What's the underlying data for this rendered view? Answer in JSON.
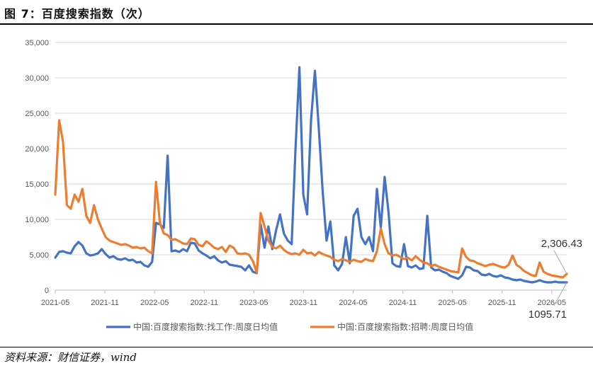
{
  "figure": {
    "title": "图 7：百度搜索指数（次）",
    "source": "资料来源：财信证券，wind"
  },
  "chart_data": {
    "type": "line",
    "y_ticks": [
      "35,000",
      "30,000",
      "25,000",
      "20,000",
      "15,000",
      "10,000",
      "5,000",
      "0"
    ],
    "x_ticks": [
      "2021-05",
      "2021-11",
      "2022-05",
      "2022-11",
      "2023-05",
      "2023-11",
      "2024-05",
      "2024-11",
      "2025-05",
      "2025-11",
      "2026-05"
    ],
    "ylim": [
      0,
      35000
    ],
    "grid": true,
    "legend_position": "bottom",
    "annotations": [
      {
        "text": "2,306.43",
        "series": "orange"
      },
      {
        "text": "1095.71",
        "series": "blue"
      }
    ],
    "series": [
      {
        "name": "中国:百度搜索指数:找工作:周度日均值",
        "color": "#4472C4",
        "points": [
          [
            0,
            4600
          ],
          [
            1,
            5400
          ],
          [
            2,
            5500
          ],
          [
            3,
            5300
          ],
          [
            4,
            5200
          ],
          [
            5,
            6200
          ],
          [
            6,
            6800
          ],
          [
            7,
            6300
          ],
          [
            8,
            5200
          ],
          [
            9,
            4900
          ],
          [
            10,
            5000
          ],
          [
            11,
            5200
          ],
          [
            12,
            5800
          ],
          [
            13,
            5100
          ],
          [
            14,
            4600
          ],
          [
            15,
            4800
          ],
          [
            16,
            4400
          ],
          [
            17,
            4300
          ],
          [
            18,
            4500
          ],
          [
            19,
            4200
          ],
          [
            20,
            4300
          ],
          [
            21,
            3900
          ],
          [
            22,
            4000
          ],
          [
            23,
            3500
          ],
          [
            24,
            3300
          ],
          [
            25,
            4000
          ],
          [
            26,
            9500
          ],
          [
            27,
            9300
          ],
          [
            28,
            8800
          ],
          [
            29,
            19000
          ],
          [
            30,
            5500
          ],
          [
            31,
            5600
          ],
          [
            32,
            5400
          ],
          [
            33,
            5800
          ],
          [
            34,
            5500
          ],
          [
            35,
            6700
          ],
          [
            36,
            6600
          ],
          [
            37,
            5600
          ],
          [
            38,
            5200
          ],
          [
            39,
            4900
          ],
          [
            40,
            4500
          ],
          [
            41,
            4800
          ],
          [
            42,
            4200
          ],
          [
            43,
            3900
          ],
          [
            44,
            4100
          ],
          [
            45,
            3600
          ],
          [
            46,
            3500
          ],
          [
            47,
            3400
          ],
          [
            48,
            3300
          ],
          [
            49,
            2800
          ],
          [
            50,
            3500
          ],
          [
            51,
            2600
          ],
          [
            52,
            2400
          ],
          [
            53,
            9300
          ],
          [
            54,
            6000
          ],
          [
            55,
            9000
          ],
          [
            56,
            5800
          ],
          [
            57,
            8500
          ],
          [
            58,
            10700
          ],
          [
            59,
            8000
          ],
          [
            60,
            7000
          ],
          [
            61,
            6500
          ],
          [
            62,
            20000
          ],
          [
            63,
            31500
          ],
          [
            64,
            13500
          ],
          [
            65,
            10700
          ],
          [
            66,
            24000
          ],
          [
            67,
            31000
          ],
          [
            68,
            23000
          ],
          [
            69,
            14000
          ],
          [
            70,
            7000
          ],
          [
            71,
            9700
          ],
          [
            72,
            3500
          ],
          [
            73,
            2800
          ],
          [
            74,
            3700
          ],
          [
            75,
            7500
          ],
          [
            76,
            3800
          ],
          [
            77,
            10500
          ],
          [
            78,
            11500
          ],
          [
            79,
            7500
          ],
          [
            80,
            6500
          ],
          [
            81,
            7500
          ],
          [
            82,
            5500
          ],
          [
            83,
            14300
          ],
          [
            84,
            8800
          ],
          [
            85,
            16000
          ],
          [
            86,
            11000
          ],
          [
            87,
            3800
          ],
          [
            88,
            3400
          ],
          [
            89,
            3300
          ],
          [
            90,
            6500
          ],
          [
            91,
            3400
          ],
          [
            92,
            3200
          ],
          [
            93,
            3500
          ],
          [
            94,
            3000
          ],
          [
            95,
            3100
          ],
          [
            96,
            10500
          ],
          [
            97,
            3200
          ],
          [
            98,
            2800
          ],
          [
            99,
            2900
          ],
          [
            100,
            2600
          ],
          [
            101,
            2400
          ],
          [
            102,
            2000
          ],
          [
            103,
            1800
          ],
          [
            104,
            1600
          ],
          [
            105,
            2100
          ],
          [
            106,
            3300
          ],
          [
            107,
            3200
          ],
          [
            108,
            2800
          ],
          [
            109,
            2700
          ],
          [
            110,
            2200
          ],
          [
            111,
            2100
          ],
          [
            112,
            2300
          ],
          [
            113,
            2000
          ],
          [
            114,
            1900
          ],
          [
            115,
            2100
          ],
          [
            116,
            1800
          ],
          [
            117,
            1700
          ],
          [
            118,
            1500
          ],
          [
            119,
            1400
          ],
          [
            120,
            1500
          ],
          [
            121,
            1300
          ],
          [
            122,
            1200
          ],
          [
            123,
            1100
          ],
          [
            124,
            1200
          ],
          [
            125,
            1400
          ],
          [
            126,
            1200
          ],
          [
            127,
            1100
          ],
          [
            128,
            1100
          ],
          [
            129,
            1200
          ],
          [
            130,
            1100
          ],
          [
            131,
            1100
          ],
          [
            132,
            1095.71
          ]
        ]
      },
      {
        "name": "中国:百度搜索指数:招聘:周度日均值",
        "color": "#ED7D31",
        "points": [
          [
            0,
            13500
          ],
          [
            1,
            24000
          ],
          [
            2,
            21000
          ],
          [
            3,
            12000
          ],
          [
            4,
            11500
          ],
          [
            5,
            13500
          ],
          [
            6,
            12500
          ],
          [
            7,
            14300
          ],
          [
            8,
            10500
          ],
          [
            9,
            9500
          ],
          [
            10,
            12000
          ],
          [
            11,
            10000
          ],
          [
            12,
            8700
          ],
          [
            13,
            7500
          ],
          [
            14,
            7000
          ],
          [
            15,
            6800
          ],
          [
            16,
            6600
          ],
          [
            17,
            6400
          ],
          [
            18,
            6500
          ],
          [
            19,
            6300
          ],
          [
            20,
            6000
          ],
          [
            21,
            6100
          ],
          [
            22,
            5900
          ],
          [
            23,
            6000
          ],
          [
            24,
            5500
          ],
          [
            25,
            5200
          ],
          [
            26,
            15300
          ],
          [
            27,
            9500
          ],
          [
            28,
            8000
          ],
          [
            29,
            7800
          ],
          [
            30,
            7100
          ],
          [
            31,
            7200
          ],
          [
            32,
            6900
          ],
          [
            33,
            6600
          ],
          [
            34,
            6500
          ],
          [
            35,
            7300
          ],
          [
            36,
            7200
          ],
          [
            37,
            6400
          ],
          [
            38,
            6200
          ],
          [
            39,
            6900
          ],
          [
            40,
            6500
          ],
          [
            41,
            6000
          ],
          [
            42,
            5800
          ],
          [
            43,
            6100
          ],
          [
            44,
            5400
          ],
          [
            45,
            6300
          ],
          [
            46,
            6000
          ],
          [
            47,
            5200
          ],
          [
            48,
            5100
          ],
          [
            49,
            5200
          ],
          [
            50,
            5000
          ],
          [
            51,
            4100
          ],
          [
            52,
            2500
          ],
          [
            53,
            10900
          ],
          [
            54,
            9000
          ],
          [
            55,
            7000
          ],
          [
            56,
            6100
          ],
          [
            57,
            5900
          ],
          [
            58,
            6300
          ],
          [
            59,
            5700
          ],
          [
            60,
            5300
          ],
          [
            61,
            5100
          ],
          [
            62,
            5200
          ],
          [
            63,
            5000
          ],
          [
            64,
            5700
          ],
          [
            65,
            5200
          ],
          [
            66,
            5300
          ],
          [
            67,
            4900
          ],
          [
            68,
            5400
          ],
          [
            69,
            5100
          ],
          [
            70,
            4900
          ],
          [
            71,
            4700
          ],
          [
            72,
            4300
          ],
          [
            73,
            4100
          ],
          [
            74,
            4400
          ],
          [
            75,
            4200
          ],
          [
            76,
            4000
          ],
          [
            77,
            4300
          ],
          [
            78,
            4100
          ],
          [
            79,
            4000
          ],
          [
            80,
            4400
          ],
          [
            81,
            4200
          ],
          [
            82,
            4100
          ],
          [
            83,
            5500
          ],
          [
            84,
            8700
          ],
          [
            85,
            6500
          ],
          [
            86,
            5200
          ],
          [
            87,
            4900
          ],
          [
            88,
            5000
          ],
          [
            89,
            4700
          ],
          [
            90,
            4400
          ],
          [
            91,
            4600
          ],
          [
            92,
            4200
          ],
          [
            93,
            4800
          ],
          [
            94,
            4300
          ],
          [
            95,
            3900
          ],
          [
            96,
            3800
          ],
          [
            97,
            3400
          ],
          [
            98,
            3600
          ],
          [
            99,
            3300
          ],
          [
            100,
            3100
          ],
          [
            101,
            2900
          ],
          [
            102,
            2700
          ],
          [
            103,
            2600
          ],
          [
            104,
            2500
          ],
          [
            105,
            5900
          ],
          [
            106,
            4700
          ],
          [
            107,
            4200
          ],
          [
            108,
            4100
          ],
          [
            109,
            3800
          ],
          [
            110,
            3600
          ],
          [
            111,
            3400
          ],
          [
            112,
            3600
          ],
          [
            113,
            3700
          ],
          [
            114,
            3500
          ],
          [
            115,
            3300
          ],
          [
            116,
            3200
          ],
          [
            117,
            3600
          ],
          [
            118,
            4900
          ],
          [
            119,
            3600
          ],
          [
            120,
            3200
          ],
          [
            121,
            2700
          ],
          [
            122,
            2400
          ],
          [
            123,
            2100
          ],
          [
            124,
            2000
          ],
          [
            125,
            3900
          ],
          [
            126,
            2600
          ],
          [
            127,
            2300
          ],
          [
            128,
            2100
          ],
          [
            129,
            2000
          ],
          [
            130,
            1900
          ],
          [
            131,
            1800
          ],
          [
            132,
            2306.43
          ]
        ]
      }
    ]
  }
}
